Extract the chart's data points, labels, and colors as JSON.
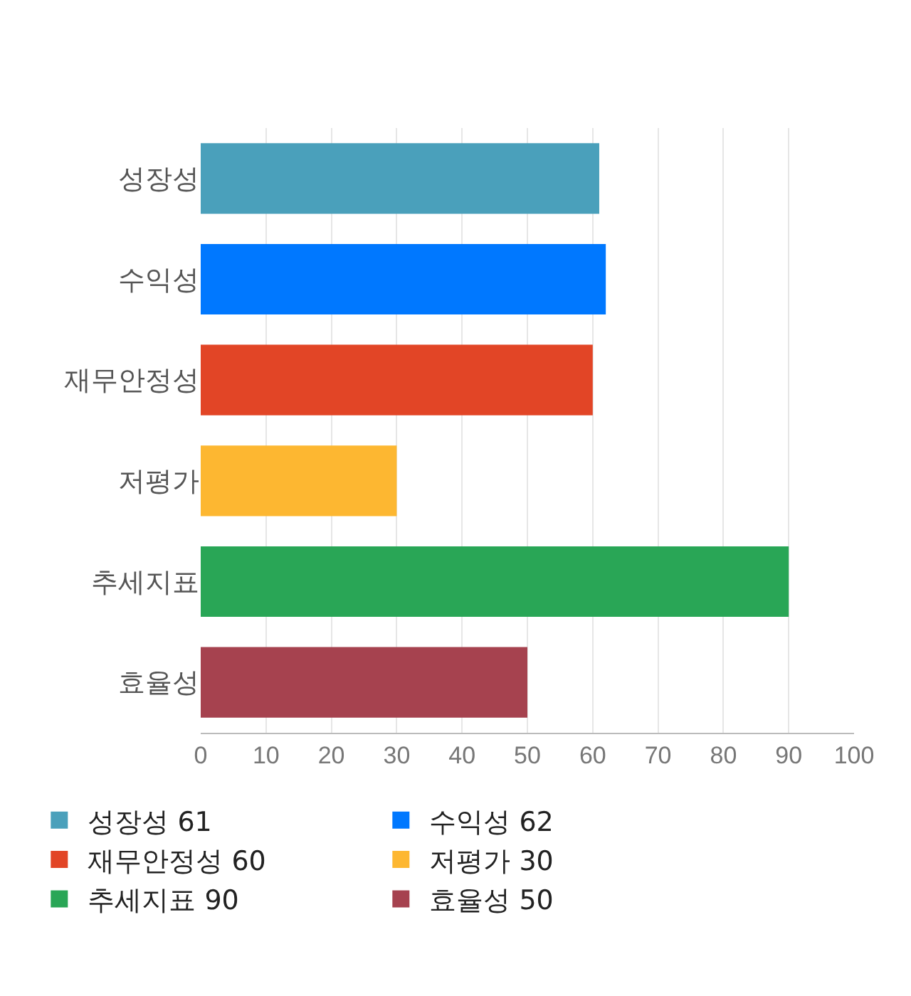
{
  "chart_data": {
    "type": "bar",
    "orientation": "horizontal",
    "categories": [
      "성장성",
      "수익성",
      "재무안정성",
      "저평가",
      "추세지표",
      "효율성"
    ],
    "series": [
      {
        "name": "성장성 61",
        "color": "#4aa0bb",
        "values": [
          61,
          null,
          null,
          null,
          null,
          null
        ]
      },
      {
        "name": "수익성 62",
        "color": "#0078ff",
        "values": [
          null,
          62,
          null,
          null,
          null,
          null
        ]
      },
      {
        "name": "재무안정성 60",
        "color": "#e24526",
        "values": [
          null,
          null,
          60,
          null,
          null,
          null
        ]
      },
      {
        "name": "저평가 30",
        "color": "#fdb731",
        "values": [
          null,
          null,
          null,
          30,
          null,
          null
        ]
      },
      {
        "name": "추세지표 90",
        "color": "#29a656",
        "values": [
          null,
          null,
          null,
          null,
          90,
          null
        ]
      },
      {
        "name": "효율성 50",
        "color": "#a6424f",
        "values": [
          null,
          null,
          null,
          null,
          null,
          50
        ]
      }
    ],
    "xlim": [
      0,
      100
    ],
    "xticks": [
      0,
      10,
      20,
      30,
      40,
      50,
      60,
      70,
      80,
      90,
      100
    ],
    "grid": "x",
    "legend": "bottom"
  }
}
